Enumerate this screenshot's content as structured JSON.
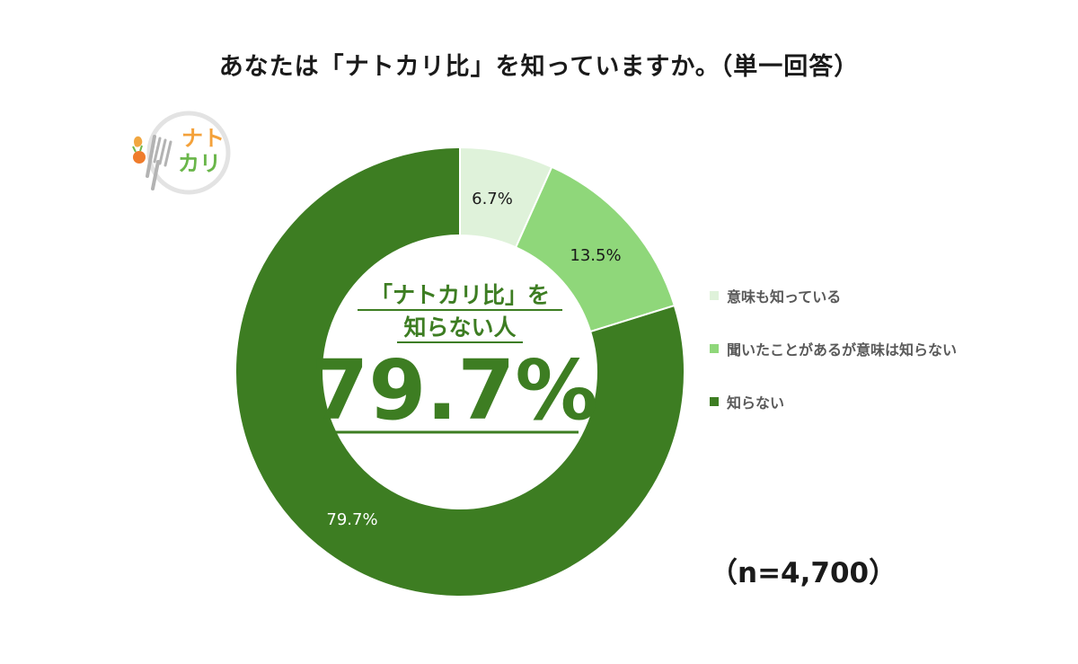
{
  "title": "あなたは「ナトカリ比」を知っていますか。（単一回答）",
  "logo": {
    "text_top": "ナト",
    "text_bottom": "カリ",
    "icon": "fork-and-vegetable-logo"
  },
  "center_callout": {
    "line1": "「ナトカリ比」を",
    "line2": "知らない人",
    "value": "79.7%"
  },
  "sample_size": "（n=4,700）",
  "colors": {
    "accent": "#3d7d22",
    "light": "#dff2da",
    "medium": "#8fd77a",
    "dark": "#3d7d22"
  },
  "chart_data": {
    "type": "pie",
    "donut": true,
    "start_angle": "12 o'clock, clockwise",
    "legend_position": "right",
    "categories": [
      "意味も知っている",
      "聞いたことがあるが意味は知らない",
      "知らない"
    ],
    "values": [
      6.7,
      13.5,
      79.7
    ],
    "labels": [
      "6.7%",
      "13.5%",
      "79.7%"
    ],
    "colors": [
      "#dff2da",
      "#8fd77a",
      "#3d7d22"
    ]
  }
}
